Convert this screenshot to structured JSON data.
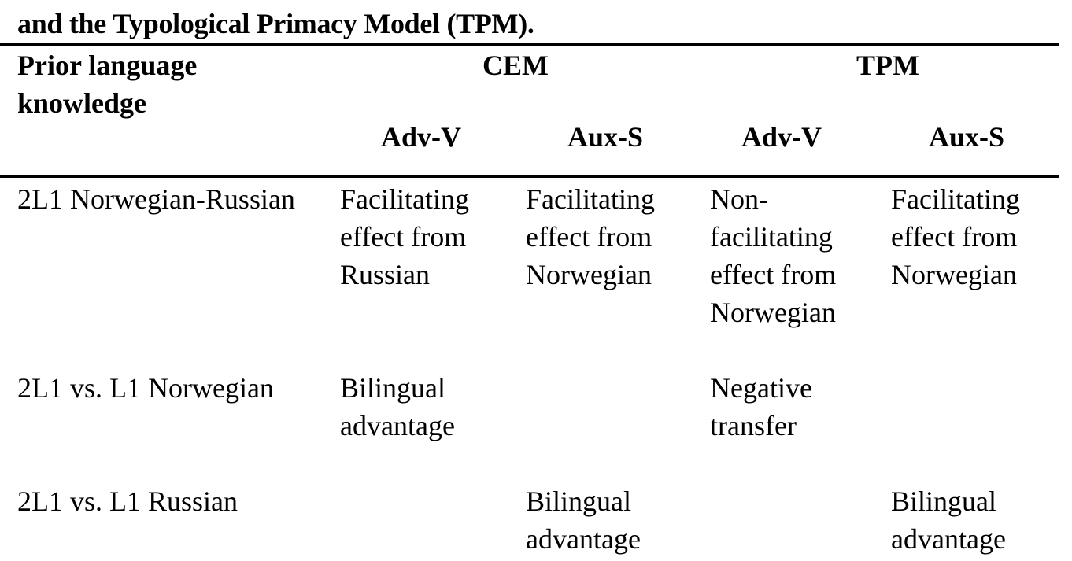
{
  "caption": {
    "line2": "and the Typological Primacy Model (TPM)."
  },
  "table": {
    "header": {
      "row_label": "Prior language knowledge",
      "groups": [
        "CEM",
        "TPM"
      ],
      "subcolumns": [
        "Adv-V",
        "Aux-S",
        "Adv-V",
        "Aux-S"
      ]
    },
    "rows": [
      {
        "label": "2L1 Norwegian-Russian",
        "cells": [
          "Facilitating effect from Russian",
          "Facilitating effect from Norwegian",
          "Non-facilitating effect from Norwegian",
          "Facilitating effect from Norwegian"
        ]
      },
      {
        "label": "2L1 vs. L1 Norwegian",
        "cells": [
          "Bilingual advantage",
          "",
          "Negative transfer",
          ""
        ]
      },
      {
        "label": "2L1 vs. L1 Russian",
        "cells": [
          "",
          "Bilingual advantage",
          "",
          "Bilingual advantage"
        ]
      }
    ]
  }
}
